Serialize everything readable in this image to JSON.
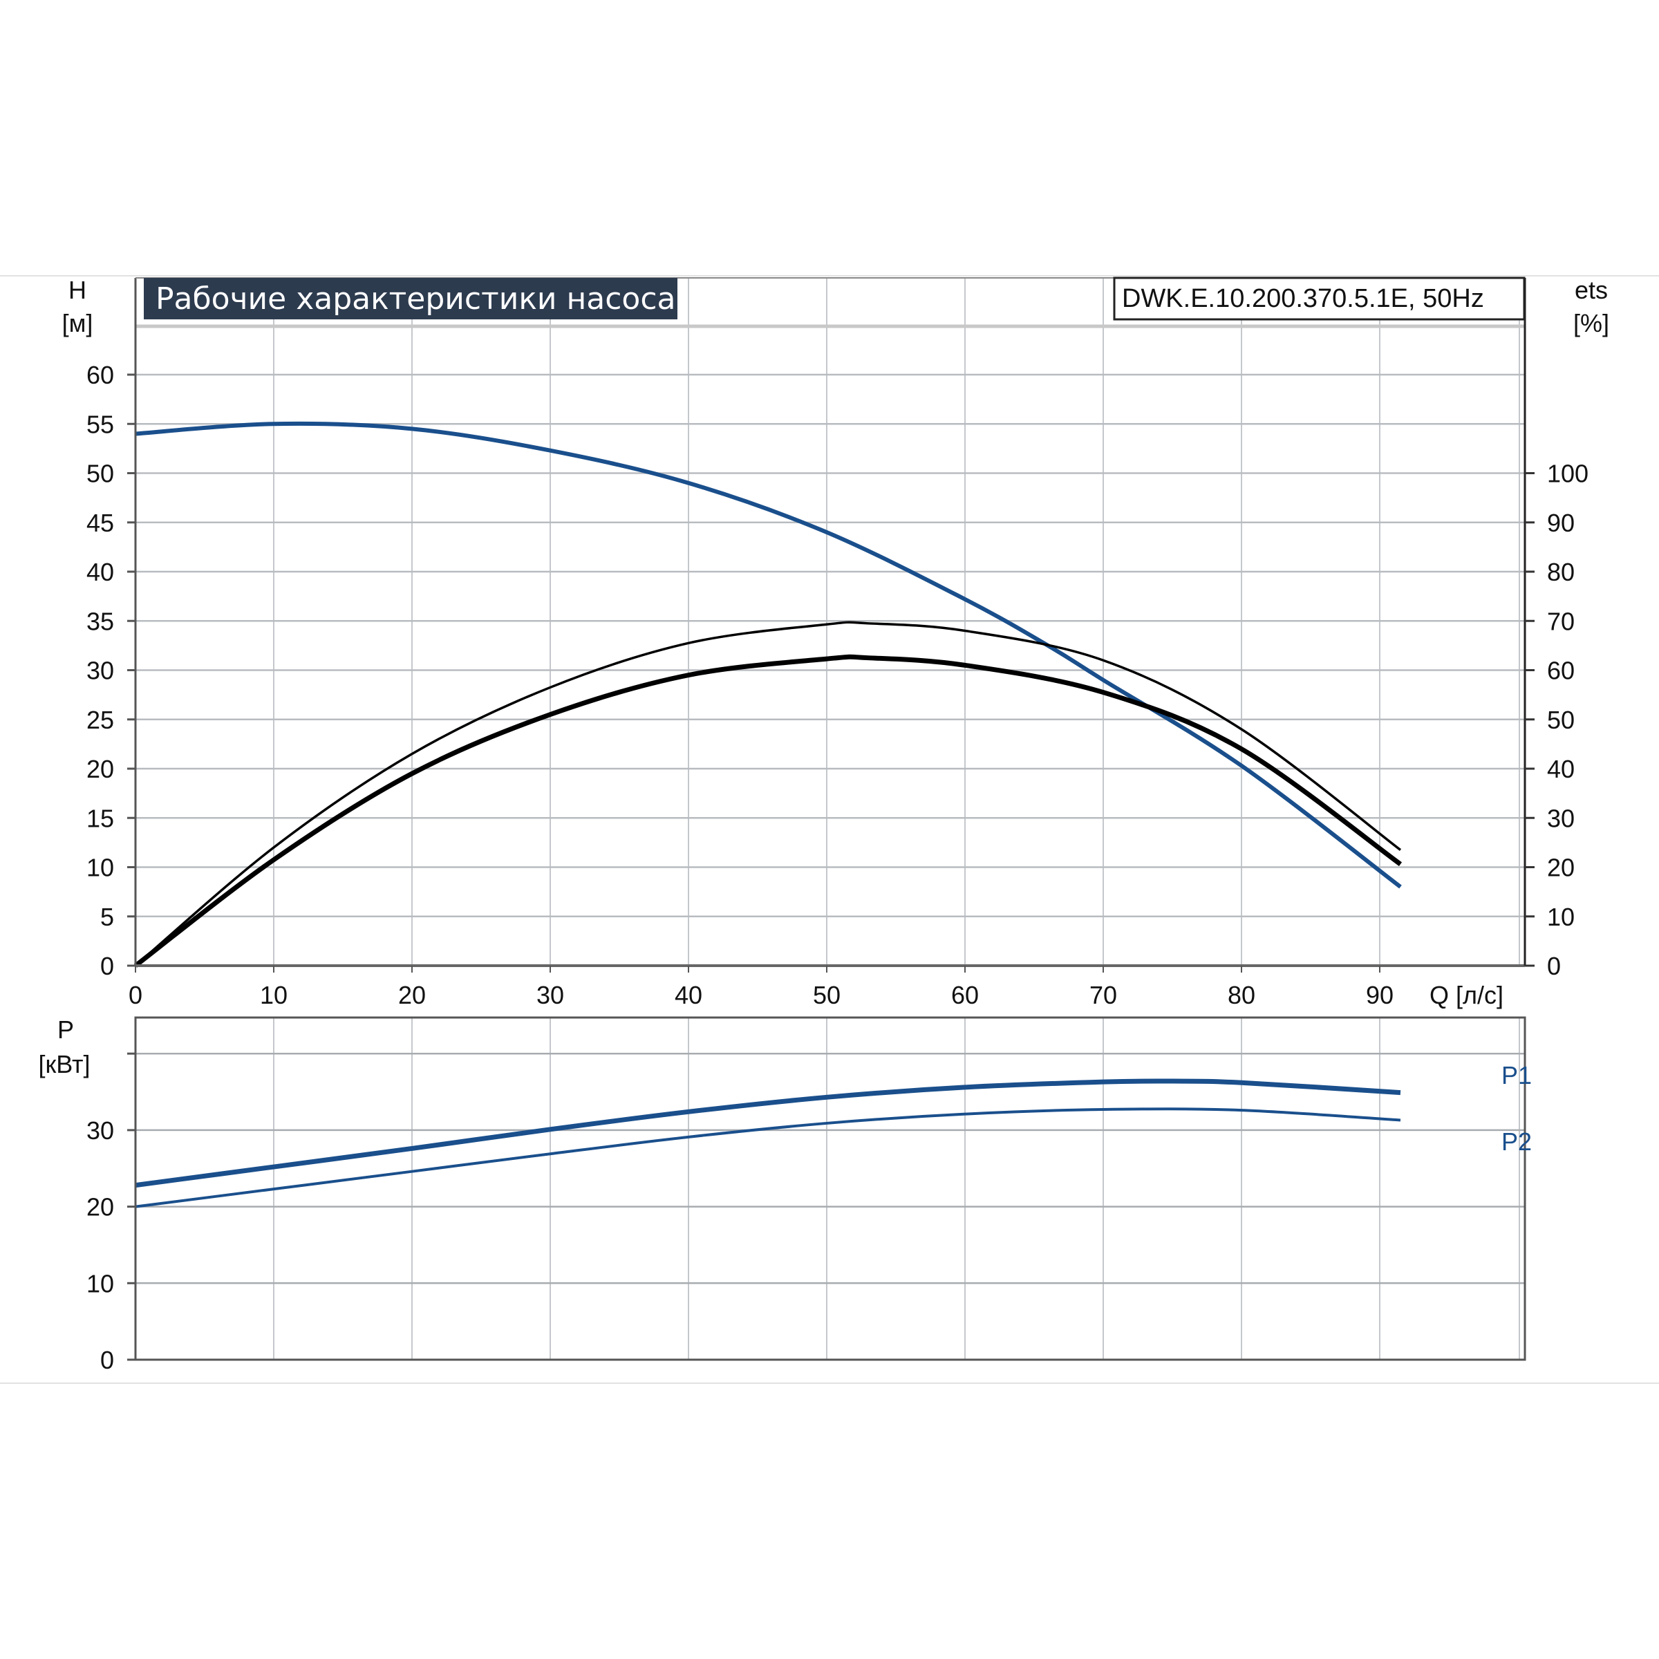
{
  "chart_data": [
    {
      "type": "line",
      "title": "Рабочие характеристики насоса",
      "model": "DWK.E.10.200.370.5.1E, 50Hz",
      "xlabel": "Q [л/с]",
      "ylabel": "H",
      "ylabel_unit": "[м]",
      "y2label": "ets",
      "y2label_unit": "[%]",
      "xlim": [
        0,
        100
      ],
      "ylim": [
        0,
        70
      ],
      "y2lim": [
        0,
        140
      ],
      "xticks": [
        0,
        10,
        20,
        30,
        40,
        50,
        60,
        70,
        80,
        90
      ],
      "yticks": [
        0,
        5,
        10,
        15,
        20,
        25,
        30,
        35,
        40,
        45,
        50,
        55,
        60
      ],
      "y2ticks": [
        0,
        10,
        20,
        30,
        40,
        50,
        60,
        70,
        80,
        90,
        100
      ],
      "grid": true,
      "series": [
        {
          "axis": "H",
          "color": "#1a4f8c",
          "x": [
            0,
            10,
            20,
            30,
            40,
            50,
            60,
            66,
            70,
            80,
            91.5
          ],
          "y": [
            54,
            55,
            54.5,
            52.3,
            49,
            44,
            37.2,
            32.5,
            29,
            20.3,
            8
          ]
        },
        {
          "axis": "eta",
          "color": "#000000",
          "x": [
            0,
            10,
            20,
            30,
            40,
            50,
            53,
            60,
            70,
            80,
            91.5
          ],
          "y": [
            0,
            24,
            43,
            56.5,
            65.5,
            69.3,
            69.5,
            68,
            62,
            48,
            23.5
          ]
        },
        {
          "axis": "eta",
          "color": "#000000",
          "x": [
            0,
            10,
            20,
            30,
            40,
            50,
            53,
            60,
            70,
            80,
            91.5
          ],
          "y": [
            0,
            21.5,
            39,
            51,
            59,
            62.3,
            62.5,
            61,
            55.5,
            44,
            20.6
          ]
        }
      ]
    },
    {
      "type": "line",
      "xlabel": "",
      "ylabel": "P",
      "ylabel_unit": "[кВт]",
      "xlim": [
        0,
        100
      ],
      "ylim": [
        0,
        44.7
      ],
      "yticks": [
        0,
        10,
        20,
        30,
        40
      ],
      "ytick_labels": [
        "0",
        "10",
        "20",
        "30",
        ""
      ],
      "grid": true,
      "series": [
        {
          "name": "P1",
          "color": "#1a4f8c",
          "x": [
            0,
            10,
            20,
            30,
            40,
            50,
            60,
            70,
            75,
            80,
            91.5
          ],
          "y": [
            22.8,
            25.2,
            27.6,
            30.1,
            32.4,
            34.3,
            35.6,
            36.3,
            36.4,
            36.2,
            34.9
          ]
        },
        {
          "name": "P2",
          "color": "#1a4f8c",
          "x": [
            0,
            10,
            20,
            30,
            40,
            50,
            60,
            70,
            80,
            91.5
          ],
          "y": [
            20,
            22.3,
            24.6,
            26.9,
            29.1,
            30.9,
            32.1,
            32.7,
            32.6,
            31.3
          ]
        }
      ]
    }
  ]
}
